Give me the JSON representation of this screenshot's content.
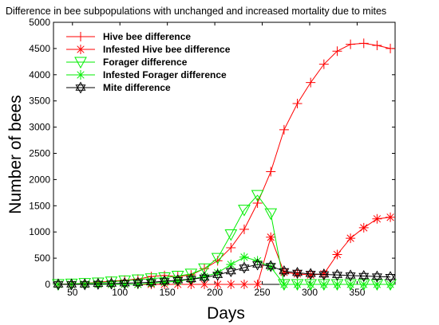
{
  "chart_data": {
    "type": "line",
    "title": "Difference in bee subpopulations with unchanged and increased mortality due to mites",
    "xlabel": "Days",
    "ylabel": "Number of bees",
    "xlim": [
      30,
      390
    ],
    "ylim": [
      0,
      5000
    ],
    "xticks": [
      50,
      100,
      150,
      200,
      250,
      300,
      350
    ],
    "yticks": [
      0,
      500,
      1000,
      1500,
      2000,
      2500,
      3000,
      3500,
      4000,
      4500,
      5000
    ],
    "grid": false,
    "legend_position": "top-left",
    "x": [
      35,
      49,
      63,
      77,
      91,
      105,
      119,
      133,
      147,
      161,
      175,
      189,
      203,
      217,
      231,
      245,
      259,
      273,
      287,
      301,
      315,
      329,
      343,
      357,
      371,
      385
    ],
    "series": [
      {
        "name": "Hive bee difference",
        "color": "#ff0000",
        "marker": "plus",
        "values": [
          0,
          10,
          20,
          40,
          60,
          80,
          100,
          150,
          170,
          150,
          180,
          300,
          450,
          700,
          1050,
          1550,
          2150,
          2950,
          3450,
          3850,
          4200,
          4450,
          4580,
          4600,
          4560,
          4500
        ]
      },
      {
        "name": "Infested Hive bee difference",
        "color": "#ff0000",
        "marker": "asterisk",
        "values": [
          0,
          0,
          0,
          0,
          0,
          0,
          0,
          0,
          0,
          0,
          0,
          0,
          0,
          0,
          0,
          0,
          900,
          230,
          200,
          180,
          200,
          570,
          880,
          1080,
          1250,
          1280
        ]
      },
      {
        "name": "Forager difference",
        "color": "#00ee00",
        "marker": "triangle-down",
        "values": [
          0,
          10,
          20,
          30,
          50,
          70,
          90,
          110,
          130,
          160,
          200,
          300,
          500,
          950,
          1420,
          1700,
          1350,
          0,
          0,
          0,
          0,
          0,
          0,
          0,
          0,
          0
        ]
      },
      {
        "name": "Infested Forager difference",
        "color": "#00ee00",
        "marker": "asterisk",
        "values": [
          0,
          0,
          0,
          0,
          0,
          0,
          0,
          20,
          40,
          60,
          100,
          150,
          220,
          380,
          520,
          450,
          330,
          0,
          0,
          0,
          0,
          0,
          0,
          0,
          0,
          0
        ]
      },
      {
        "name": "Mite difference",
        "color": "#000000",
        "marker": "hexagram",
        "values": [
          0,
          0,
          0,
          10,
          15,
          20,
          30,
          40,
          60,
          80,
          100,
          130,
          180,
          250,
          320,
          380,
          350,
          250,
          220,
          200,
          190,
          180,
          170,
          160,
          150,
          140
        ]
      }
    ]
  }
}
